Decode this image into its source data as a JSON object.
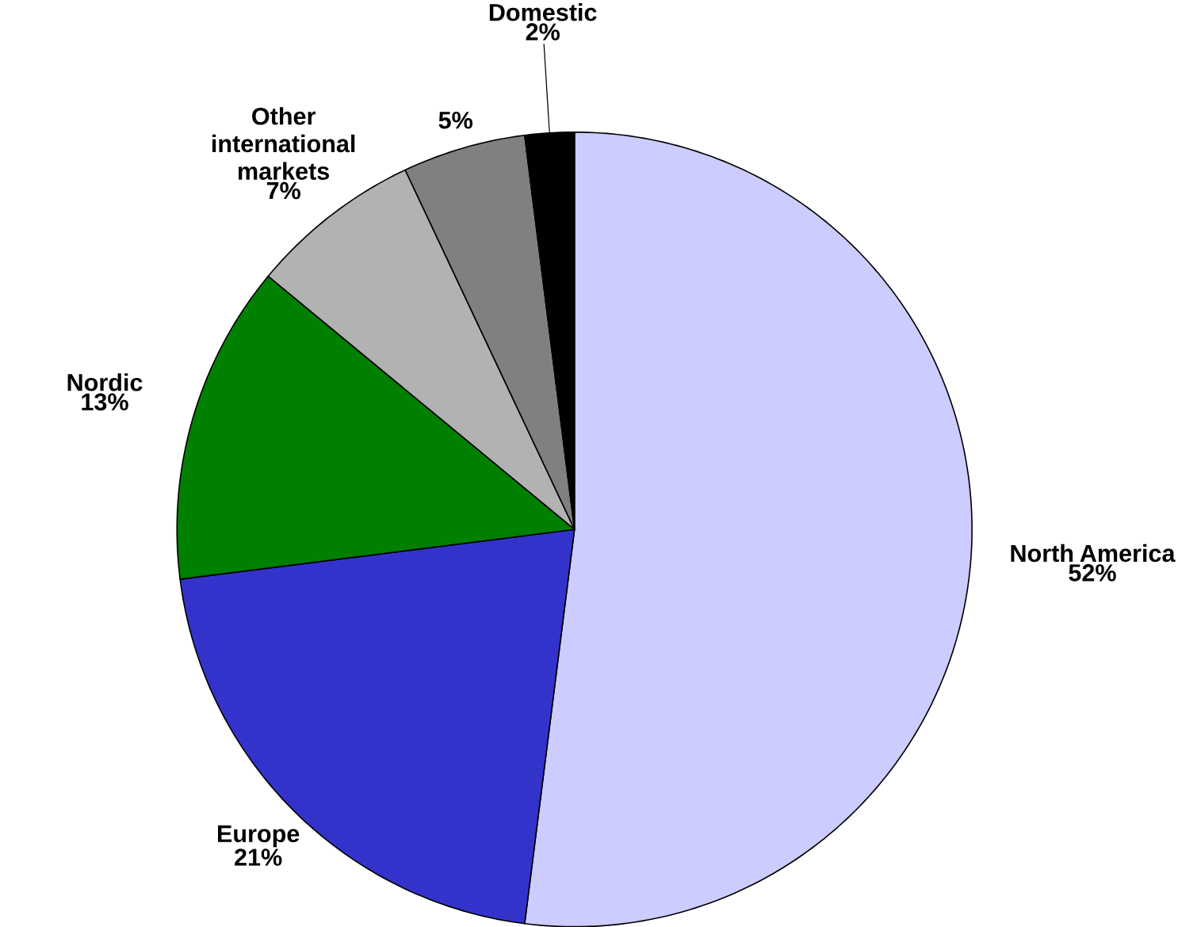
{
  "chart_data": {
    "type": "pie",
    "categories": [
      "North America",
      "Europe",
      "Nordic",
      "Other international markets",
      null,
      "Domestic"
    ],
    "values": [
      52,
      21,
      13,
      7,
      5,
      2
    ],
    "value_labels": [
      "52%",
      "21%",
      "13%",
      "7%",
      "5%",
      "2%"
    ],
    "colors": [
      "#ccccff",
      "#3333cc",
      "#008000",
      "#b2b2b2",
      "#808080",
      "#000000"
    ]
  }
}
